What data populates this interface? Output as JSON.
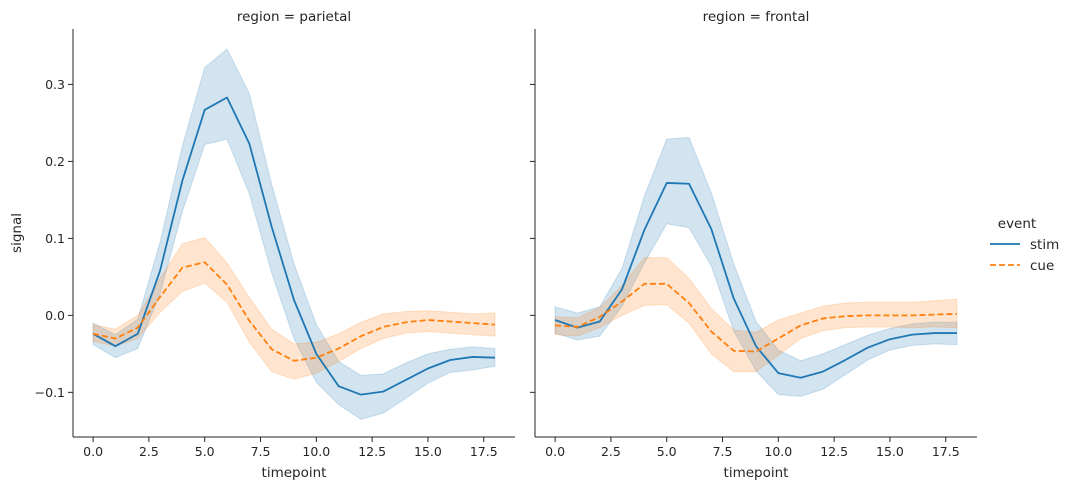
{
  "chart_data": {
    "type": "line",
    "xlabel": "timepoint",
    "ylabel": "signal",
    "xlim": [
      -0.9,
      18.9
    ],
    "ylim": [
      -0.158,
      0.372
    ],
    "xticks": [
      0.0,
      2.5,
      5.0,
      7.5,
      10.0,
      12.5,
      15.0,
      17.5
    ],
    "xtick_labels": [
      "0.0",
      "2.5",
      "5.0",
      "7.5",
      "10.0",
      "12.5",
      "15.0",
      "17.5"
    ],
    "yticks": [
      -0.1,
      0.0,
      0.1,
      0.2,
      0.3
    ],
    "ytick_labels": [
      "−0.1",
      "0.0",
      "0.1",
      "0.2",
      "0.3"
    ],
    "grid": false,
    "legend": {
      "title": "event",
      "placement": "right",
      "entries": [
        "stim",
        "cue"
      ]
    },
    "series_styles": [
      {
        "name": "stim",
        "color": "#1f77b4",
        "dash": "solid"
      },
      {
        "name": "cue",
        "color": "#ff7f0e",
        "dash": "dashed"
      }
    ],
    "panels": [
      {
        "title": "region = parietal",
        "series": [
          {
            "name": "stim",
            "x": [
              0,
              1,
              2,
              3,
              4,
              5,
              6,
              7,
              8,
              9,
              10,
              11,
              12,
              13,
              14,
              15,
              16,
              17,
              18
            ],
            "y": [
              -0.024,
              -0.04,
              -0.024,
              0.058,
              0.175,
              0.267,
              0.283,
              0.223,
              0.115,
              0.02,
              -0.05,
              -0.092,
              -0.103,
              -0.099,
              -0.084,
              -0.069,
              -0.058,
              -0.054,
              -0.055
            ],
            "lower": [
              -0.038,
              -0.055,
              -0.043,
              0.028,
              0.135,
              0.222,
              0.229,
              0.158,
              0.055,
              -0.03,
              -0.087,
              -0.116,
              -0.135,
              -0.127,
              -0.108,
              -0.088,
              -0.074,
              -0.071,
              -0.066
            ],
            "upper": [
              -0.01,
              -0.025,
              -0.005,
              0.095,
              0.22,
              0.322,
              0.346,
              0.288,
              0.17,
              0.067,
              -0.012,
              -0.06,
              -0.078,
              -0.076,
              -0.062,
              -0.05,
              -0.044,
              -0.041,
              -0.043
            ]
          },
          {
            "name": "cue",
            "x": [
              0,
              1,
              2,
              3,
              4,
              5,
              6,
              7,
              8,
              9,
              10,
              11,
              12,
              13,
              14,
              15,
              16,
              17,
              18
            ],
            "y": [
              -0.024,
              -0.03,
              -0.016,
              0.024,
              0.062,
              0.069,
              0.04,
              -0.007,
              -0.044,
              -0.059,
              -0.055,
              -0.043,
              -0.027,
              -0.015,
              -0.009,
              -0.006,
              -0.008,
              -0.01,
              -0.012
            ],
            "lower": [
              -0.034,
              -0.04,
              -0.03,
              0.004,
              0.031,
              0.042,
              0.017,
              -0.035,
              -0.073,
              -0.083,
              -0.075,
              -0.06,
              -0.043,
              -0.03,
              -0.023,
              -0.021,
              -0.023,
              -0.025,
              -0.027
            ],
            "upper": [
              -0.012,
              -0.018,
              0.0,
              0.048,
              0.093,
              0.101,
              0.068,
              0.023,
              -0.018,
              -0.037,
              -0.035,
              -0.024,
              -0.009,
              0.002,
              0.005,
              0.006,
              0.004,
              0.002,
              0.003
            ]
          }
        ]
      },
      {
        "title": "region = frontal",
        "series": [
          {
            "name": "stim",
            "x": [
              0,
              1,
              2,
              3,
              4,
              5,
              6,
              7,
              8,
              9,
              10,
              11,
              12,
              13,
              14,
              15,
              16,
              17,
              18
            ],
            "y": [
              -0.006,
              -0.016,
              -0.008,
              0.034,
              0.111,
              0.172,
              0.171,
              0.112,
              0.022,
              -0.04,
              -0.075,
              -0.081,
              -0.073,
              -0.058,
              -0.042,
              -0.031,
              -0.025,
              -0.023,
              -0.023
            ],
            "lower": [
              -0.023,
              -0.032,
              -0.027,
              0.012,
              0.068,
              0.119,
              0.114,
              0.064,
              -0.02,
              -0.072,
              -0.103,
              -0.105,
              -0.096,
              -0.077,
              -0.058,
              -0.045,
              -0.039,
              -0.037,
              -0.038
            ],
            "upper": [
              0.011,
              0.003,
              0.011,
              0.061,
              0.155,
              0.229,
              0.231,
              0.159,
              0.067,
              -0.008,
              -0.045,
              -0.059,
              -0.05,
              -0.038,
              -0.026,
              -0.017,
              -0.011,
              -0.009,
              -0.009
            ]
          },
          {
            "name": "cue",
            "x": [
              0,
              1,
              2,
              3,
              4,
              5,
              6,
              7,
              8,
              9,
              10,
              11,
              12,
              13,
              14,
              15,
              16,
              17,
              18
            ],
            "y": [
              -0.013,
              -0.015,
              -0.002,
              0.018,
              0.041,
              0.041,
              0.016,
              -0.021,
              -0.046,
              -0.047,
              -0.03,
              -0.013,
              -0.004,
              -0.001,
              0.0,
              0.0,
              0.0,
              0.001,
              0.002
            ],
            "lower": [
              -0.025,
              -0.027,
              -0.016,
              0.0,
              0.013,
              0.014,
              -0.01,
              -0.05,
              -0.073,
              -0.073,
              -0.052,
              -0.03,
              -0.02,
              -0.016,
              -0.015,
              -0.015,
              -0.016,
              -0.015,
              -0.016
            ],
            "upper": [
              -0.002,
              -0.003,
              0.01,
              0.039,
              0.075,
              0.075,
              0.048,
              0.009,
              -0.019,
              -0.022,
              -0.006,
              0.003,
              0.012,
              0.016,
              0.017,
              0.017,
              0.017,
              0.019,
              0.021
            ]
          }
        ]
      }
    ]
  }
}
